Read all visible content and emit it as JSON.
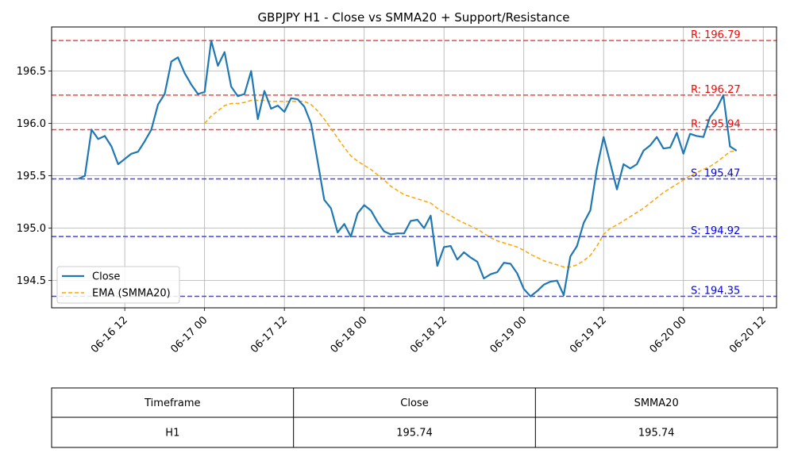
{
  "chart_data": {
    "type": "line",
    "title": "GBPJPY H1 - Close vs SMMA20 + Support/Resistance",
    "xlabel": "",
    "ylabel": "",
    "x_ticks": [
      "06-16 12",
      "06-17 00",
      "06-17 12",
      "06-18 00",
      "06-18 12",
      "06-19 00",
      "06-19 12",
      "06-20 00",
      "06-20 12"
    ],
    "y_ticks": [
      "194.5",
      "195.0",
      "195.5",
      "196.0",
      "196.5"
    ],
    "xlim": [
      "2025-06-16 01:00",
      "2025-06-20 14:00"
    ],
    "ylim": [
      194.24,
      196.92
    ],
    "grid": true,
    "legend_position": "lower-left",
    "x_start": "2025-06-16 05:00",
    "x_interval_hours": 1,
    "series": [
      {
        "name": "Close",
        "color": "#1f77b4",
        "style": "solid",
        "values": [
          195.47,
          195.5,
          195.94,
          195.85,
          195.88,
          195.78,
          195.61,
          195.66,
          195.71,
          195.73,
          195.83,
          195.94,
          196.18,
          196.28,
          196.59,
          196.63,
          196.48,
          196.37,
          196.28,
          196.3,
          196.79,
          196.55,
          196.68,
          196.35,
          196.26,
          196.28,
          196.5,
          196.04,
          196.31,
          196.14,
          196.17,
          196.11,
          196.24,
          196.23,
          196.16,
          196.0,
          195.64,
          195.27,
          195.19,
          194.96,
          195.04,
          194.92,
          195.14,
          195.22,
          195.17,
          195.06,
          194.97,
          194.94,
          194.95,
          194.95,
          195.07,
          195.08,
          195.0,
          195.12,
          194.64,
          194.82,
          194.83,
          194.7,
          194.77,
          194.72,
          194.68,
          194.52,
          194.56,
          194.58,
          194.67,
          194.66,
          194.57,
          194.42,
          194.35,
          194.4,
          194.46,
          194.49,
          194.5,
          194.36,
          194.73,
          194.83,
          195.05,
          195.17,
          195.57,
          195.87,
          195.62,
          195.37,
          195.61,
          195.57,
          195.61,
          195.74,
          195.79,
          195.87,
          195.76,
          195.77,
          195.91,
          195.71,
          195.9,
          195.88,
          195.87,
          196.06,
          196.14,
          196.27,
          195.78,
          195.74
        ]
      },
      {
        "name": "EMA (SMMA20)",
        "color": "#ffa500",
        "style": "dashed",
        "values": [
          null,
          null,
          null,
          null,
          null,
          null,
          null,
          null,
          null,
          null,
          null,
          null,
          null,
          null,
          null,
          null,
          null,
          null,
          null,
          196.0,
          196.07,
          196.12,
          196.17,
          196.19,
          196.19,
          196.2,
          196.22,
          196.22,
          196.22,
          196.21,
          196.21,
          196.21,
          196.21,
          196.21,
          196.21,
          196.18,
          196.12,
          196.04,
          195.95,
          195.86,
          195.77,
          195.69,
          195.64,
          195.6,
          195.56,
          195.51,
          195.46,
          195.4,
          195.36,
          195.32,
          195.3,
          195.28,
          195.26,
          195.24,
          195.19,
          195.15,
          195.12,
          195.08,
          195.05,
          195.02,
          194.99,
          194.95,
          194.91,
          194.88,
          194.86,
          194.84,
          194.82,
          194.79,
          194.75,
          194.72,
          194.69,
          194.67,
          194.65,
          194.63,
          194.63,
          194.65,
          194.69,
          194.74,
          194.83,
          194.94,
          195.0,
          195.03,
          195.07,
          195.11,
          195.15,
          195.19,
          195.24,
          195.29,
          195.34,
          195.38,
          195.42,
          195.46,
          195.5,
          195.53,
          195.56,
          195.59,
          195.63,
          195.68,
          195.73,
          195.74
        ]
      }
    ],
    "levels": [
      {
        "kind": "resistance",
        "value": 196.79,
        "label": "R: 196.79",
        "color": "#ff0000"
      },
      {
        "kind": "resistance",
        "value": 196.27,
        "label": "R: 196.27",
        "color": "#ff0000"
      },
      {
        "kind": "resistance",
        "value": 195.94,
        "label": "R: 195.94",
        "color": "#ff0000"
      },
      {
        "kind": "support",
        "value": 195.47,
        "label": "S: 195.47",
        "color": "#0000ff"
      },
      {
        "kind": "support",
        "value": 194.92,
        "label": "S: 194.92",
        "color": "#0000ff"
      },
      {
        "kind": "support",
        "value": 194.35,
        "label": "S: 194.35",
        "color": "#0000ff"
      }
    ]
  },
  "table": {
    "headers": [
      "Timeframe",
      "Close",
      "SMMA20"
    ],
    "rows": [
      [
        "H1",
        "195.74",
        "195.74"
      ]
    ]
  }
}
